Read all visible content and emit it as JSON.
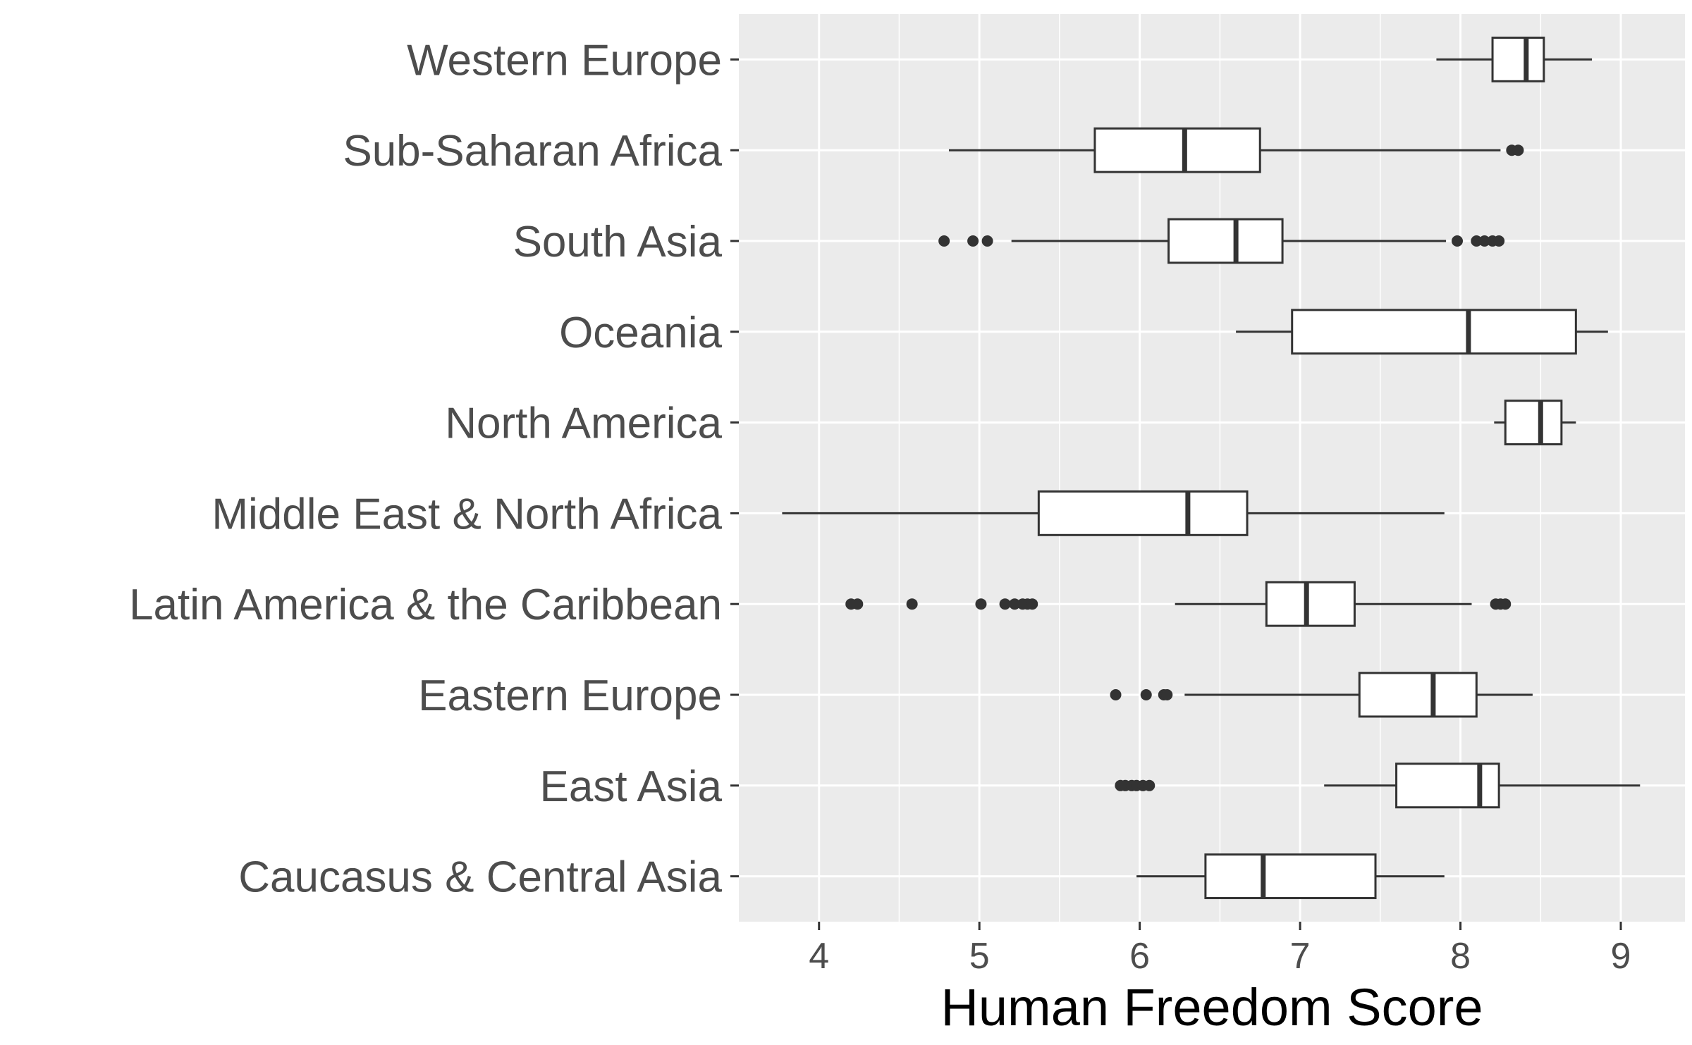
{
  "chart_data": {
    "type": "boxplot",
    "orientation": "horizontal",
    "title": "",
    "xlabel": "Human Freedom Score",
    "ylabel": "",
    "xlim": [
      3.5,
      9.4
    ],
    "x_ticks": [
      4,
      5,
      6,
      7,
      8,
      9
    ],
    "grid": true,
    "legend": "none",
    "colors": {
      "panel_background": "#ebebeb",
      "grid_line": "#ffffff",
      "box_fill": "#ffffff",
      "box_stroke": "#333333",
      "outlier": "#333333",
      "label_text": "#4d4d4d",
      "title_text": "#000000"
    },
    "categories": [
      "Caucasus & Central Asia",
      "East Asia",
      "Eastern Europe",
      "Latin America & the Caribbean",
      "Middle East & North Africa",
      "North America",
      "Oceania",
      "South Asia",
      "Sub-Saharan Africa",
      "Western Europe"
    ],
    "boxes": [
      {
        "category": "Caucasus & Central Asia",
        "whisker_low": 5.98,
        "q1": 6.41,
        "median": 6.77,
        "q3": 7.47,
        "whisker_high": 7.9,
        "outliers": []
      },
      {
        "category": "East Asia",
        "whisker_low": 7.15,
        "q1": 7.6,
        "median": 8.12,
        "q3": 8.24,
        "whisker_high": 9.12,
        "outliers": [
          5.88,
          5.91,
          5.95,
          5.98,
          6.02,
          6.06
        ]
      },
      {
        "category": "Eastern Europe",
        "whisker_low": 6.28,
        "q1": 7.37,
        "median": 7.83,
        "q3": 8.1,
        "whisker_high": 8.45,
        "outliers": [
          5.85,
          6.04,
          6.15,
          6.17
        ]
      },
      {
        "category": "Latin America & the Caribbean",
        "whisker_low": 6.22,
        "q1": 6.79,
        "median": 7.04,
        "q3": 7.34,
        "whisker_high": 8.07,
        "outliers": [
          4.2,
          4.24,
          4.58,
          5.01,
          5.16,
          5.22,
          5.27,
          5.3,
          5.33,
          8.22,
          8.25,
          8.28
        ]
      },
      {
        "category": "Middle East & North Africa",
        "whisker_low": 3.77,
        "q1": 5.37,
        "median": 6.3,
        "q3": 6.67,
        "whisker_high": 7.9,
        "outliers": []
      },
      {
        "category": "North America",
        "whisker_low": 8.21,
        "q1": 8.28,
        "median": 8.5,
        "q3": 8.63,
        "whisker_high": 8.72,
        "outliers": []
      },
      {
        "category": "Oceania",
        "whisker_low": 6.6,
        "q1": 6.95,
        "median": 8.05,
        "q3": 8.72,
        "whisker_high": 8.92,
        "outliers": []
      },
      {
        "category": "South Asia",
        "whisker_low": 5.2,
        "q1": 6.18,
        "median": 6.6,
        "q3": 6.89,
        "whisker_high": 7.91,
        "outliers": [
          4.78,
          4.96,
          5.05,
          7.98,
          8.1,
          8.15,
          8.2,
          8.24
        ]
      },
      {
        "category": "Sub-Saharan Africa",
        "whisker_low": 4.81,
        "q1": 5.72,
        "median": 6.28,
        "q3": 6.75,
        "whisker_high": 8.25,
        "outliers": [
          8.32,
          8.36
        ]
      },
      {
        "category": "Western Europe",
        "whisker_low": 7.85,
        "q1": 8.2,
        "median": 8.41,
        "q3": 8.52,
        "whisker_high": 8.82,
        "outliers": []
      }
    ]
  }
}
